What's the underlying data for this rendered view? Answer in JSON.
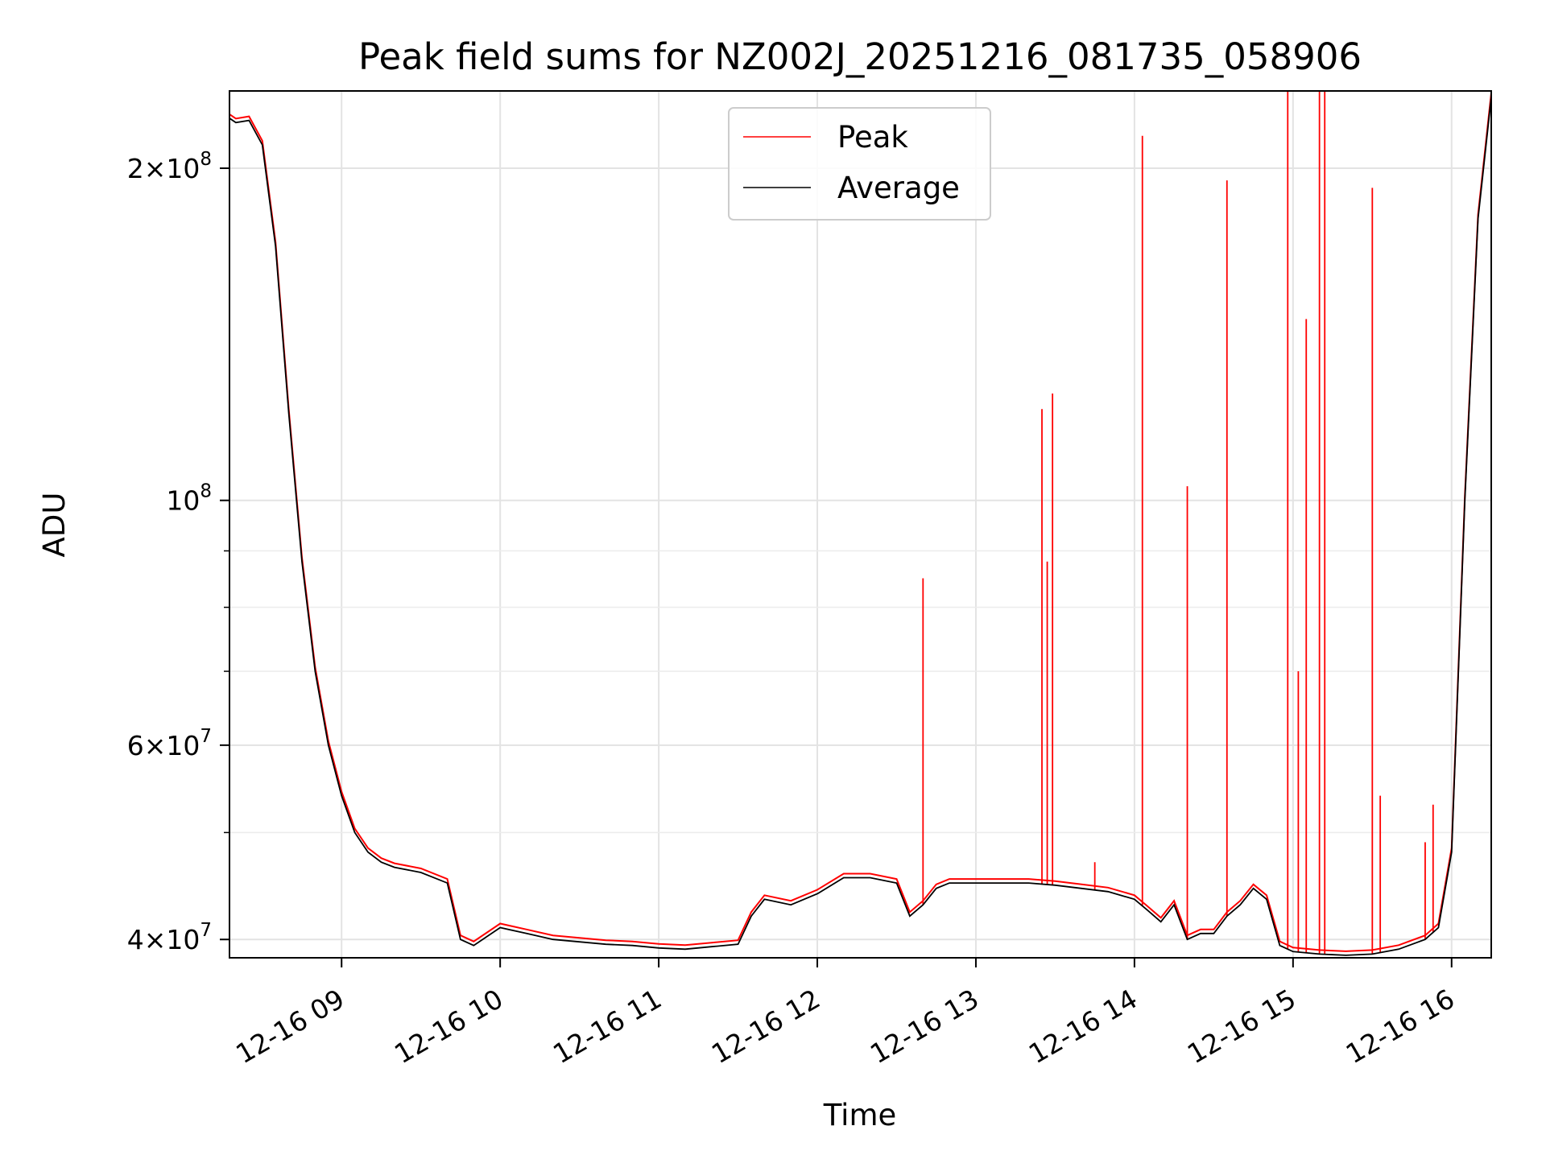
{
  "chart_data": {
    "type": "line",
    "title": "Peak field sums for NZ002J_20251216_081735_058906",
    "xlabel": "Time",
    "ylabel": "ADU",
    "y_scale": "log",
    "xlim": [
      "2025-12-16T08:17:35",
      "2025-12-16T16:15:00"
    ],
    "ylim": [
      38500000,
      235000000
    ],
    "grid": true,
    "legend_position": "top-center",
    "x_ticks": [
      {
        "value": "2025-12-16T09:00",
        "label": "12-16 09"
      },
      {
        "value": "2025-12-16T10:00",
        "label": "12-16 10"
      },
      {
        "value": "2025-12-16T11:00",
        "label": "12-16 11"
      },
      {
        "value": "2025-12-16T12:00",
        "label": "12-16 12"
      },
      {
        "value": "2025-12-16T13:00",
        "label": "12-16 13"
      },
      {
        "value": "2025-12-16T14:00",
        "label": "12-16 14"
      },
      {
        "value": "2025-12-16T15:00",
        "label": "12-16 15"
      },
      {
        "value": "2025-12-16T16:00",
        "label": "12-16 16"
      }
    ],
    "y_ticks": [
      {
        "value": 40000000,
        "mantissa": "4",
        "exponent": "7"
      },
      {
        "value": 60000000,
        "mantissa": "6",
        "exponent": "7"
      },
      {
        "value": 100000000,
        "mantissa": "",
        "exponent": "8"
      },
      {
        "value": 200000000,
        "mantissa": "2",
        "exponent": "8"
      }
    ],
    "y_minor_ticks": [
      50000000,
      70000000,
      80000000,
      90000000
    ],
    "series": [
      {
        "name": "Average",
        "color": "#000000",
        "x": [
          "2025-12-16T08:17:35",
          "08:20",
          "08:25",
          "08:30",
          "08:35",
          "08:40",
          "08:45",
          "08:50",
          "08:55",
          "09:00",
          "09:05",
          "09:10",
          "09:15",
          "09:20",
          "09:30",
          "09:40",
          "09:45",
          "09:50",
          "10:00",
          "10:10",
          "10:20",
          "10:30",
          "10:40",
          "10:50",
          "11:00",
          "11:10",
          "11:20",
          "11:30",
          "11:35",
          "11:40",
          "11:50",
          "12:00",
          "12:10",
          "12:20",
          "12:30",
          "12:35",
          "12:40",
          "12:45",
          "12:50",
          "13:00",
          "13:10",
          "13:20",
          "13:30",
          "13:40",
          "13:50",
          "14:00",
          "14:05",
          "14:10",
          "14:15",
          "14:20",
          "14:25",
          "14:30",
          "14:35",
          "14:40",
          "14:45",
          "14:50",
          "14:55",
          "15:00",
          "15:10",
          "15:20",
          "15:30",
          "15:40",
          "15:50",
          "15:55",
          "16:00",
          "16:05",
          "16:10",
          "16:15"
        ],
        "y": [
          222000000,
          220000000,
          221000000,
          210000000,
          170000000,
          120000000,
          88000000,
          70000000,
          60000000,
          54000000,
          50000000,
          48000000,
          47000000,
          46500000,
          46000000,
          45000000,
          40000000,
          39500000,
          41000000,
          40500000,
          40000000,
          39800000,
          39600000,
          39500000,
          39300000,
          39200000,
          39400000,
          39600000,
          42000000,
          43500000,
          43000000,
          44000000,
          45500000,
          45500000,
          45000000,
          42000000,
          43000000,
          44500000,
          45000000,
          45000000,
          45000000,
          45000000,
          44800000,
          44500000,
          44200000,
          43500000,
          42500000,
          41500000,
          43000000,
          40000000,
          40500000,
          40500000,
          42000000,
          43000000,
          44500000,
          43500000,
          39500000,
          39000000,
          38800000,
          38700000,
          38800000,
          39200000,
          40000000,
          41000000,
          48000000,
          100000000,
          180000000,
          232000000
        ]
      },
      {
        "name": "Peak",
        "color": "#ff0000",
        "spikes": [
          {
            "x": "12:40",
            "y": 85000000
          },
          {
            "x": "13:25",
            "y": 121000000
          },
          {
            "x": "13:27",
            "y": 88000000
          },
          {
            "x": "13:29",
            "y": 125000000
          },
          {
            "x": "13:45",
            "y": 47000000
          },
          {
            "x": "14:03",
            "y": 214000000
          },
          {
            "x": "14:20",
            "y": 103000000
          },
          {
            "x": "14:35",
            "y": 195000000
          },
          {
            "x": "14:58",
            "y": 235000000
          },
          {
            "x": "15:02",
            "y": 70000000
          },
          {
            "x": "15:05",
            "y": 146000000
          },
          {
            "x": "15:10",
            "y": 235000000
          },
          {
            "x": "15:12",
            "y": 235000000
          },
          {
            "x": "15:30",
            "y": 192000000
          },
          {
            "x": "15:33",
            "y": 54000000
          },
          {
            "x": "15:50",
            "y": 49000000
          },
          {
            "x": "15:53",
            "y": 53000000
          }
        ]
      }
    ]
  }
}
